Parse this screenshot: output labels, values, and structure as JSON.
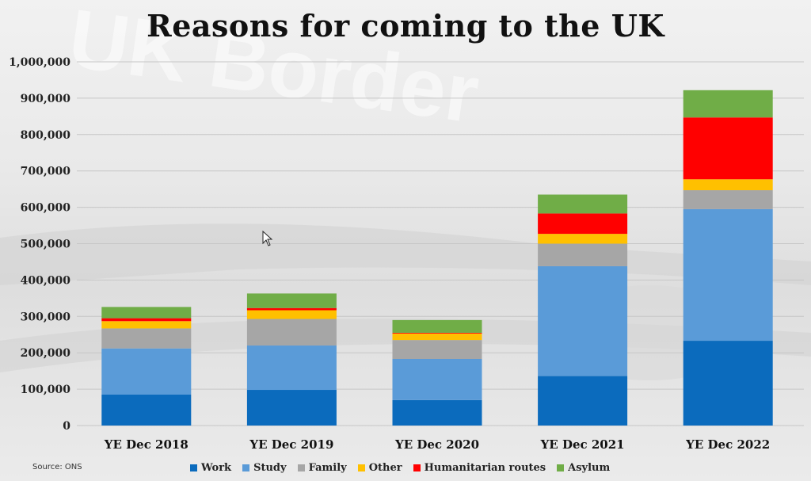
{
  "title": "Reasons for coming to the UK",
  "source": "Source: ONS",
  "background_text": "UK Border",
  "chart_data": {
    "type": "bar",
    "stacked": true,
    "title": "Reasons for coming to the UK",
    "xlabel": "",
    "ylabel": "",
    "ylim": [
      0,
      1000000
    ],
    "yticks": [
      "0",
      "100,000",
      "200,000",
      "300,000",
      "400,000",
      "500,000",
      "600,000",
      "700,000",
      "800,000",
      "900,000",
      "1,000,000"
    ],
    "ytick_values": [
      0,
      100000,
      200000,
      300000,
      400000,
      500000,
      600000,
      700000,
      800000,
      900000,
      1000000
    ],
    "grid": true,
    "legend_position": "bottom",
    "categories": [
      "YE Dec 2018",
      "YE Dec 2019",
      "YE Dec 2020",
      "YE Dec 2021",
      "YE Dec 2022"
    ],
    "series": [
      {
        "name": "Work",
        "color": "#0b6bbd",
        "values": [
          85000,
          98000,
          70000,
          136000,
          233000
        ]
      },
      {
        "name": "Study",
        "color": "#5a9bd8",
        "values": [
          127000,
          122000,
          113000,
          302000,
          362000
        ]
      },
      {
        "name": "Family",
        "color": "#a6a6a6",
        "values": [
          55000,
          73000,
          52000,
          62000,
          52000
        ]
      },
      {
        "name": "Other",
        "color": "#ffc000",
        "values": [
          20000,
          24000,
          18000,
          27000,
          30000
        ]
      },
      {
        "name": "Humanitarian routes",
        "color": "#ff0000",
        "values": [
          8000,
          6000,
          2000,
          56000,
          170000
        ]
      },
      {
        "name": "Asylum",
        "color": "#70ad47",
        "values": [
          31000,
          40000,
          35000,
          52000,
          75000
        ]
      }
    ]
  }
}
